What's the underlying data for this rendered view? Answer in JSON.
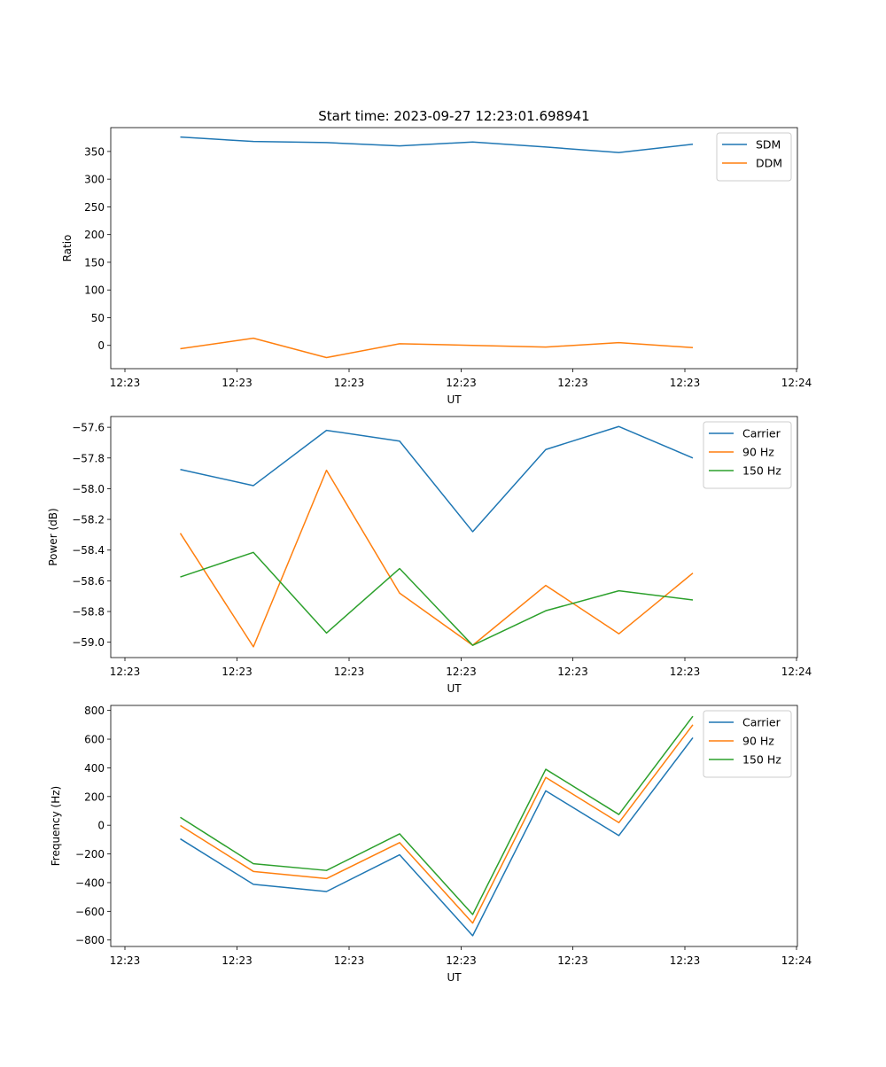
{
  "title": "Start time: 2023-09-27 12:23:01.698941",
  "chart_data": [
    {
      "type": "line",
      "title": "Start time: 2023-09-27 12:23:01.698941",
      "xlabel": "UT",
      "ylabel": "Ratio",
      "x_tick_labels": [
        "12:23",
        "12:23",
        "12:23",
        "12:23",
        "12:23",
        "12:23",
        "12:24"
      ],
      "ylim": [
        -42,
        393
      ],
      "y_ticks": [
        0,
        50,
        100,
        150,
        200,
        250,
        300,
        350
      ],
      "legend": "top-right",
      "series": [
        {
          "name": "SDM",
          "color": "#1f77b4",
          "values": [
            376,
            368,
            366,
            360,
            367,
            358,
            348,
            363
          ]
        },
        {
          "name": "DDM",
          "color": "#ff7f0e",
          "values": [
            -6,
            13,
            -22,
            3,
            0,
            -3,
            5,
            -4
          ]
        }
      ]
    },
    {
      "type": "line",
      "title": "",
      "xlabel": "UT",
      "ylabel": "Power (dB)",
      "x_tick_labels": [
        "12:23",
        "12:23",
        "12:23",
        "12:23",
        "12:23",
        "12:23",
        "12:24"
      ],
      "ylim": [
        -59.1,
        -57.53
      ],
      "y_ticks": [
        -59.0,
        -58.8,
        -58.6,
        -58.4,
        -58.2,
        -58.0,
        -57.8,
        -57.6
      ],
      "legend": "top-right",
      "series": [
        {
          "name": "Carrier",
          "color": "#1f77b4",
          "values": [
            -57.875,
            -57.98,
            -57.62,
            -57.69,
            -58.28,
            -57.745,
            -57.595,
            -57.8
          ]
        },
        {
          "name": "90 Hz",
          "color": "#ff7f0e",
          "values": [
            -58.29,
            -59.03,
            -57.88,
            -58.68,
            -59.02,
            -58.63,
            -58.945,
            -58.55
          ]
        },
        {
          "name": "150 Hz",
          "color": "#2ca02c",
          "values": [
            -58.575,
            -58.415,
            -58.94,
            -58.52,
            -59.02,
            -58.795,
            -58.665,
            -58.725
          ]
        }
      ]
    },
    {
      "type": "line",
      "title": "",
      "xlabel": "UT",
      "ylabel": "Frequency (Hz)",
      "x_tick_labels": [
        "12:23",
        "12:23",
        "12:23",
        "12:23",
        "12:23",
        "12:23",
        "12:24"
      ],
      "ylim": [
        -845,
        835
      ],
      "y_ticks": [
        -800,
        -600,
        -400,
        -200,
        0,
        200,
        400,
        600,
        800
      ],
      "legend": "top-right",
      "series": [
        {
          "name": "Carrier",
          "color": "#1f77b4",
          "values": [
            -95,
            -412,
            -462,
            -206,
            -770,
            240,
            -72,
            610
          ]
        },
        {
          "name": "90 Hz",
          "color": "#ff7f0e",
          "values": [
            -2,
            -322,
            -372,
            -121,
            -682,
            333,
            18,
            700
          ]
        },
        {
          "name": "150 Hz",
          "color": "#2ca02c",
          "values": [
            55,
            -268,
            -315,
            -60,
            -622,
            390,
            75,
            760
          ]
        }
      ]
    }
  ]
}
